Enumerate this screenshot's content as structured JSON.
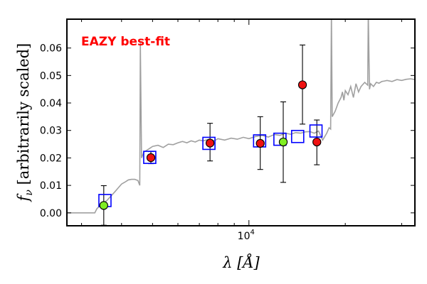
{
  "chart_data": {
    "type": "scatter",
    "title": "",
    "annotation": {
      "text": "EAZY best-fit",
      "color": "#ff0000"
    },
    "xlabel": "λ [Å]",
    "ylabel": "f_ν [arbitrarily scaled]",
    "xscale": "log",
    "xlim": [
      2700,
      33000
    ],
    "ylim": [
      -0.0047,
      0.0705
    ],
    "grid": false,
    "y_ticks": [
      0.0,
      0.01,
      0.02,
      0.03,
      0.04,
      0.05,
      0.06
    ],
    "y_tick_labels": [
      "0.00",
      "0.01",
      "0.02",
      "0.03",
      "0.04",
      "0.05",
      "0.06"
    ],
    "x_major_ticks": [
      10000
    ],
    "x_major_tick_labels": [
      "10^4"
    ],
    "x_minor_ticks": [
      3000,
      4000,
      5000,
      6000,
      7000,
      8000,
      9000,
      20000,
      30000
    ],
    "template_spectrum": {
      "color": "#a0a0a0",
      "x": [
        2700,
        3300,
        3350,
        3450,
        3600,
        3700,
        3800,
        3900,
        4000,
        4100,
        4200,
        4300,
        4400,
        4500,
        4560,
        4580,
        4620,
        4700,
        4800,
        4900,
        5000,
        5200,
        5400,
        5600,
        5800,
        6000,
        6200,
        6400,
        6600,
        6800,
        7000,
        7200,
        7500,
        7800,
        8000,
        8400,
        8800,
        9200,
        9600,
        10000,
        10500,
        11000,
        11500,
        12000,
        12500,
        13000,
        13500,
        14000,
        14500,
        15000,
        15500,
        16000,
        16500,
        17000,
        17500,
        17800,
        18000,
        18100,
        18200,
        18600,
        19000,
        19400,
        19600,
        19800,
        20000,
        20400,
        20800,
        21200,
        21600,
        22000,
        22400,
        23000,
        23500,
        23600,
        23800,
        24000,
        24500,
        25000,
        25500,
        26000,
        26500,
        27000,
        28000,
        29000,
        30000,
        31000,
        32000,
        33000
      ],
      "y": [
        0.0,
        0.0,
        0.0015,
        0.003,
        0.0045,
        0.006,
        0.0075,
        0.009,
        0.0105,
        0.0112,
        0.012,
        0.0122,
        0.0122,
        0.0118,
        0.01,
        0.062,
        0.02,
        0.0222,
        0.0228,
        0.0235,
        0.0242,
        0.0246,
        0.0238,
        0.025,
        0.0248,
        0.0255,
        0.026,
        0.0255,
        0.0262,
        0.0258,
        0.0265,
        0.0262,
        0.0268,
        0.0262,
        0.027,
        0.0265,
        0.0272,
        0.0268,
        0.0275,
        0.027,
        0.0278,
        0.0282,
        0.0276,
        0.0285,
        0.0282,
        0.029,
        0.0286,
        0.0292,
        0.029,
        0.0295,
        0.0296,
        0.029,
        0.0298,
        0.0265,
        0.029,
        0.031,
        0.0305,
        0.073,
        0.035,
        0.037,
        0.04,
        0.042,
        0.044,
        0.041,
        0.0445,
        0.043,
        0.046,
        0.042,
        0.047,
        0.044,
        0.046,
        0.0475,
        0.0465,
        0.073,
        0.045,
        0.047,
        0.046,
        0.0475,
        0.0472,
        0.0478,
        0.048,
        0.0482,
        0.0478,
        0.0485,
        0.0482,
        0.0486,
        0.0488,
        0.0485
      ]
    },
    "model_fluxes": {
      "marker": "open-square",
      "color": "#0000ff",
      "x": [
        3550,
        4900,
        7500,
        10800,
        12500,
        14200,
        16200
      ],
      "y": [
        0.0045,
        0.0202,
        0.0253,
        0.0262,
        0.0268,
        0.0278,
        0.0298
      ]
    },
    "observed_fluxes": {
      "marker": "filled-circle",
      "x": [
        3520,
        4940,
        7560,
        10850,
        12800,
        14700,
        16300
      ],
      "y": [
        0.0027,
        0.0201,
        0.0254,
        0.0253,
        0.0258,
        0.0466,
        0.0258
      ],
      "yerr_low": [
        0.0072,
        0.0022,
        0.0065,
        0.0095,
        0.0147,
        0.0143,
        0.0083
      ],
      "yerr_high": [
        0.0072,
        0.0022,
        0.0072,
        0.0097,
        0.0146,
        0.0145,
        0.008
      ],
      "colors": [
        "#80ee22",
        "#ee1111",
        "#ee1111",
        "#ee1111",
        "#80ee22",
        "#ee1111",
        "#ee1111"
      ]
    }
  }
}
